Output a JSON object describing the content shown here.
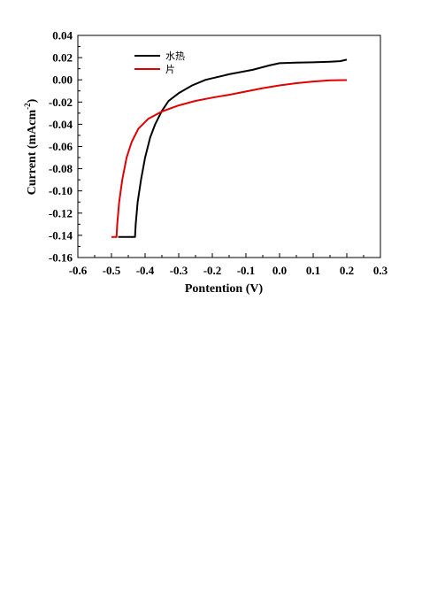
{
  "chart_data": {
    "type": "line",
    "xlabel": "Pontention (V)",
    "ylabel_main": "Current (mAcm",
    "ylabel_sup": "-2",
    "ylabel_close": ")",
    "xlim": [
      -0.6,
      0.3
    ],
    "ylim": [
      -0.16,
      0.04
    ],
    "x_ticks": [
      "-0.6",
      "-0.5",
      "-0.4",
      "-0.3",
      "-0.2",
      "-0.1",
      "0.0",
      "0.1",
      "0.2",
      "0.3"
    ],
    "y_ticks": [
      "0.04",
      "0.02",
      "0.00",
      "-0.02",
      "-0.04",
      "-0.06",
      "-0.08",
      "-0.10",
      "-0.12",
      "-0.14",
      "-0.16"
    ],
    "grid": false,
    "legend_position": "top-left",
    "series": [
      {
        "name": "水热",
        "color": "#000000",
        "points": [
          [
            -0.48,
            -0.1415
          ],
          [
            -0.43,
            -0.1415
          ],
          [
            -0.428,
            -0.13
          ],
          [
            -0.422,
            -0.11
          ],
          [
            -0.412,
            -0.09
          ],
          [
            -0.4,
            -0.07
          ],
          [
            -0.385,
            -0.052
          ],
          [
            -0.37,
            -0.04
          ],
          [
            -0.35,
            -0.028
          ],
          [
            -0.33,
            -0.019
          ],
          [
            -0.3,
            -0.012
          ],
          [
            -0.26,
            -0.005
          ],
          [
            -0.22,
            0.0
          ],
          [
            -0.15,
            0.005
          ],
          [
            -0.08,
            0.009
          ],
          [
            -0.03,
            0.013
          ],
          [
            0.0,
            0.015
          ],
          [
            0.05,
            0.0155
          ],
          [
            0.1,
            0.0158
          ],
          [
            0.15,
            0.0163
          ],
          [
            0.18,
            0.0168
          ],
          [
            0.2,
            0.0182
          ]
        ]
      },
      {
        "name": "片",
        "color": "#e00000",
        "points": [
          [
            -0.5,
            -0.1415
          ],
          [
            -0.485,
            -0.1415
          ],
          [
            -0.483,
            -0.13
          ],
          [
            -0.477,
            -0.11
          ],
          [
            -0.468,
            -0.09
          ],
          [
            -0.455,
            -0.07
          ],
          [
            -0.44,
            -0.056
          ],
          [
            -0.42,
            -0.044
          ],
          [
            -0.39,
            -0.035
          ],
          [
            -0.35,
            -0.0285
          ],
          [
            -0.3,
            -0.023
          ],
          [
            -0.25,
            -0.019
          ],
          [
            -0.2,
            -0.016
          ],
          [
            -0.15,
            -0.0135
          ],
          [
            -0.1,
            -0.0105
          ],
          [
            -0.05,
            -0.0075
          ],
          [
            0.0,
            -0.005
          ],
          [
            0.05,
            -0.003
          ],
          [
            0.1,
            -0.0015
          ],
          [
            0.15,
            -0.0004
          ],
          [
            0.2,
            -0.0002
          ]
        ]
      }
    ]
  }
}
